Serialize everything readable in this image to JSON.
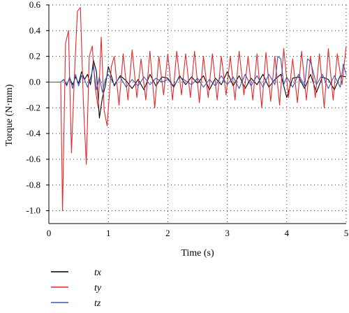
{
  "chart_data": {
    "type": "line",
    "xlabel": "Time (s)",
    "ylabel": "Torque (N·mm)",
    "xlim": [
      0,
      5
    ],
    "ylim": [
      -1.1,
      0.6
    ],
    "xticks": [
      "0",
      "1",
      "2",
      "3",
      "4",
      "5"
    ],
    "yticks": [
      "0.6",
      "0.4",
      "0.2",
      "0.0",
      "-0.2",
      "-0.4",
      "-0.6",
      "-0.8",
      "-1.0"
    ],
    "grid": "dotted",
    "legend_placement": "bottom-left",
    "series": [
      {
        "name": "tx",
        "color": "#000000",
        "x": [
          0,
          0.2,
          0.25,
          0.3,
          0.35,
          0.4,
          0.45,
          0.5,
          0.55,
          0.6,
          0.65,
          0.7,
          0.75,
          0.8,
          0.85,
          0.9,
          0.95,
          1.0,
          1.05,
          1.1,
          1.2,
          1.3,
          1.4,
          1.5,
          1.6,
          1.7,
          1.8,
          1.9,
          2.0,
          2.1,
          2.2,
          2.3,
          2.4,
          2.5,
          2.6,
          2.7,
          2.8,
          2.9,
          3.0,
          3.1,
          3.2,
          3.3,
          3.4,
          3.5,
          3.6,
          3.7,
          3.8,
          3.9,
          4.0,
          4.1,
          4.2,
          4.3,
          4.4,
          4.5,
          4.6,
          4.7,
          4.8,
          4.9,
          5.0
        ],
        "y": [
          0,
          0,
          0.02,
          -0.02,
          0.03,
          -0.02,
          0.04,
          -0.01,
          0.08,
          0.02,
          0.06,
          -0.02,
          0.17,
          0.08,
          -0.28,
          -0.12,
          -0.03,
          0.12,
          0.05,
          -0.03,
          0.05,
          0.01,
          -0.05,
          0.02,
          -0.06,
          0.06,
          -0.03,
          0.04,
          0.03,
          -0.04,
          0.05,
          -0.02,
          0.04,
          -0.01,
          0.05,
          -0.06,
          0.03,
          -0.02,
          0.08,
          -0.03,
          0.05,
          -0.05,
          0.03,
          -0.02,
          0.06,
          -0.04,
          0.02,
          0.06,
          -0.12,
          0.03,
          0.04,
          -0.05,
          0.06,
          -0.08,
          0.04,
          0.02,
          -0.06,
          0.05,
          0.04
        ]
      },
      {
        "name": "ty",
        "color": "#e8262a",
        "x": [
          0,
          0.2,
          0.23,
          0.28,
          0.33,
          0.38,
          0.43,
          0.48,
          0.53,
          0.58,
          0.63,
          0.68,
          0.73,
          0.78,
          0.83,
          0.88,
          0.93,
          0.98,
          1.05,
          1.1,
          1.18,
          1.25,
          1.33,
          1.4,
          1.48,
          1.55,
          1.63,
          1.7,
          1.78,
          1.85,
          1.93,
          2.0,
          2.08,
          2.15,
          2.23,
          2.3,
          2.38,
          2.45,
          2.53,
          2.6,
          2.68,
          2.75,
          2.83,
          2.9,
          2.98,
          3.05,
          3.13,
          3.2,
          3.28,
          3.35,
          3.43,
          3.5,
          3.58,
          3.65,
          3.73,
          3.8,
          3.88,
          3.95,
          4.03,
          4.1,
          4.18,
          4.25,
          4.33,
          4.4,
          4.48,
          4.55,
          4.63,
          4.7,
          4.78,
          4.85,
          4.93,
          5.0
        ],
        "y": [
          0,
          0,
          -1.0,
          0.3,
          0.4,
          -0.55,
          0.05,
          0.55,
          0.58,
          -0.15,
          -0.64,
          0.2,
          0.28,
          -0.05,
          -0.2,
          0.35,
          -0.22,
          -0.34,
          0.12,
          0.2,
          -0.18,
          0.22,
          -0.14,
          0.25,
          -0.12,
          0.18,
          -0.14,
          0.24,
          -0.2,
          0.2,
          -0.1,
          0.22,
          -0.14,
          0.24,
          -0.1,
          0.22,
          -0.12,
          0.24,
          -0.16,
          0.2,
          -0.12,
          0.22,
          -0.14,
          0.2,
          -0.1,
          0.2,
          -0.14,
          0.24,
          -0.1,
          0.2,
          -0.14,
          0.22,
          -0.2,
          0.23,
          -0.15,
          0.2,
          -0.18,
          0.26,
          -0.12,
          0.18,
          -0.16,
          0.24,
          -0.14,
          0.2,
          -0.12,
          0.22,
          -0.2,
          0.26,
          -0.14,
          0.22,
          -0.02,
          0.28
        ]
      },
      {
        "name": "tz",
        "color": "#3a55b4",
        "x": [
          0,
          0.2,
          0.25,
          0.3,
          0.35,
          0.4,
          0.45,
          0.5,
          0.55,
          0.6,
          0.65,
          0.7,
          0.75,
          0.8,
          0.85,
          0.9,
          0.95,
          1.0,
          1.1,
          1.2,
          1.3,
          1.4,
          1.5,
          1.6,
          1.7,
          1.8,
          1.9,
          2.0,
          2.1,
          2.2,
          2.3,
          2.4,
          2.5,
          2.6,
          2.7,
          2.8,
          2.9,
          3.0,
          3.1,
          3.2,
          3.3,
          3.4,
          3.5,
          3.6,
          3.7,
          3.8,
          3.85,
          3.9,
          3.95,
          4.0,
          4.1,
          4.2,
          4.3,
          4.35,
          4.4,
          4.5,
          4.6,
          4.7,
          4.8,
          4.9,
          4.95,
          5.0
        ],
        "y": [
          0,
          0,
          0.02,
          -0.03,
          0.04,
          -0.05,
          0.06,
          -0.03,
          0.05,
          0.02,
          -0.04,
          0.03,
          0.12,
          -0.06,
          0.04,
          -0.08,
          0.02,
          0.06,
          -0.02,
          0.04,
          -0.04,
          0.02,
          -0.03,
          0.04,
          -0.02,
          0.03,
          0.0,
          0.02,
          -0.03,
          0.04,
          0.01,
          -0.02,
          0.03,
          -0.04,
          0.02,
          -0.03,
          0.05,
          -0.02,
          0.04,
          -0.05,
          0.06,
          -0.03,
          0.05,
          -0.04,
          0.06,
          -0.02,
          0.2,
          0.18,
          -0.02,
          0.04,
          -0.04,
          0.06,
          -0.03,
          0.18,
          0.16,
          -0.02,
          0.06,
          -0.05,
          0.05,
          -0.04,
          0.14,
          0.06
        ]
      }
    ]
  }
}
